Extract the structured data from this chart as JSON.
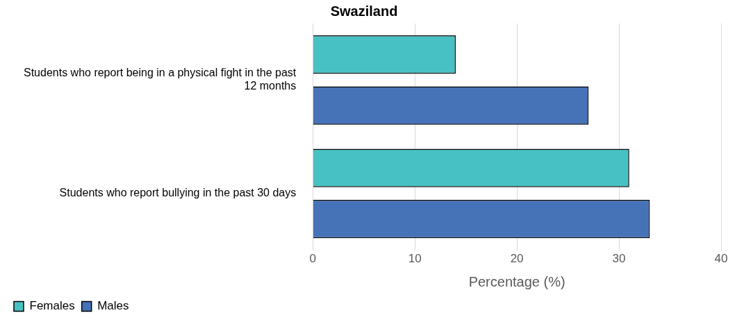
{
  "chart_data": {
    "type": "bar",
    "orientation": "horizontal",
    "title": "Swaziland",
    "xlabel": "Percentage (%)",
    "categories": [
      "Students who report being in a physical fight in the past 12 months",
      "Students who report bullying in the past 30 days"
    ],
    "series": [
      {
        "name": "Females",
        "color": "#48c1c4",
        "values": [
          14,
          31
        ]
      },
      {
        "name": "Males",
        "color": "#4672b8",
        "values": [
          27,
          33
        ]
      }
    ],
    "xlim": [
      0,
      40
    ],
    "xticks": [
      0,
      10,
      20,
      30,
      40
    ],
    "grid": "x",
    "legend": "bottom"
  }
}
